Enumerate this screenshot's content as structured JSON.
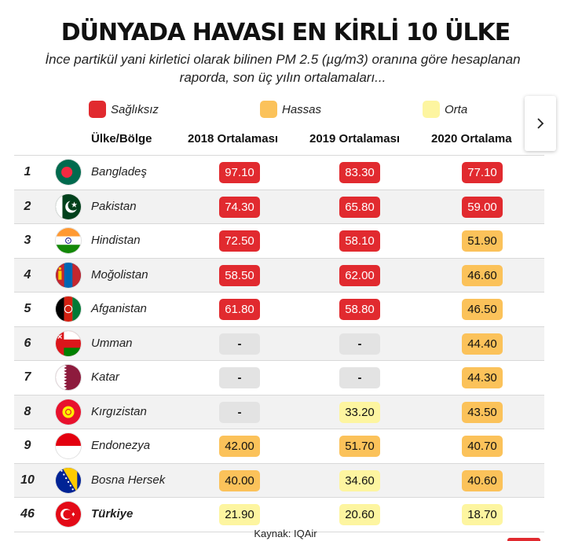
{
  "header": {
    "title": "DÜNYADA HAVASI EN KİRLİ 10 ÜLKE",
    "subtitle": "İnce partikül yani kirletici olarak bilinen PM 2.5 (µg/m3) oranına göre hesaplanan raporda, son üç yılın ortalamaları..."
  },
  "legend": [
    {
      "label": "Sağlıksız",
      "color": "#e12a2f"
    },
    {
      "label": "Hassas",
      "color": "#fbc25a"
    },
    {
      "label": "Orta",
      "color": "#fdf5a0"
    }
  ],
  "columns": {
    "country": "Ülke/Bölge",
    "y2018": "2018 Ortalaması",
    "y2019": "2019 Ortalaması",
    "y2020": "2020 Ortalama"
  },
  "colors": {
    "sagliksiz": "#e12a2f",
    "hassas": "#fbc25a",
    "orta": "#fdf5a0",
    "no_data": "#e3e3e3"
  },
  "chart_data": {
    "type": "table",
    "columns": [
      "Ülke/Bölge",
      "2018 Ortalaması",
      "2019 Ortalaması",
      "2020 Ortalama"
    ],
    "rows": [
      {
        "rank": "1",
        "country": "Bangladeş",
        "flag": "bangladesh-flag-icon",
        "values": [
          "97.10",
          "83.30",
          "77.10"
        ],
        "levels": [
          "sagliksiz",
          "sagliksiz",
          "sagliksiz"
        ]
      },
      {
        "rank": "2",
        "country": "Pakistan",
        "flag": "pakistan-flag-icon",
        "values": [
          "74.30",
          "65.80",
          "59.00"
        ],
        "levels": [
          "sagliksiz",
          "sagliksiz",
          "sagliksiz"
        ]
      },
      {
        "rank": "3",
        "country": "Hindistan",
        "flag": "india-flag-icon",
        "values": [
          "72.50",
          "58.10",
          "51.90"
        ],
        "levels": [
          "sagliksiz",
          "sagliksiz",
          "hassas"
        ]
      },
      {
        "rank": "4",
        "country": "Moğolistan",
        "flag": "mongolia-flag-icon",
        "values": [
          "58.50",
          "62.00",
          "46.60"
        ],
        "levels": [
          "sagliksiz",
          "sagliksiz",
          "hassas"
        ]
      },
      {
        "rank": "5",
        "country": "Afganistan",
        "flag": "afghanistan-flag-icon",
        "values": [
          "61.80",
          "58.80",
          "46.50"
        ],
        "levels": [
          "sagliksiz",
          "sagliksiz",
          "hassas"
        ]
      },
      {
        "rank": "6",
        "country": "Umman",
        "flag": "oman-flag-icon",
        "values": [
          "-",
          "-",
          "44.40"
        ],
        "levels": [
          "no_data",
          "no_data",
          "hassas"
        ]
      },
      {
        "rank": "7",
        "country": "Katar",
        "flag": "qatar-flag-icon",
        "values": [
          "-",
          "-",
          "44.30"
        ],
        "levels": [
          "no_data",
          "no_data",
          "hassas"
        ]
      },
      {
        "rank": "8",
        "country": "Kırgızistan",
        "flag": "kyrgyzstan-flag-icon",
        "values": [
          "-",
          "33.20",
          "43.50"
        ],
        "levels": [
          "no_data",
          "orta",
          "hassas"
        ]
      },
      {
        "rank": "9",
        "country": "Endonezya",
        "flag": "indonesia-flag-icon",
        "values": [
          "42.00",
          "51.70",
          "40.70"
        ],
        "levels": [
          "hassas",
          "hassas",
          "hassas"
        ]
      },
      {
        "rank": "10",
        "country": "Bosna Hersek",
        "flag": "bosnia-flag-icon",
        "values": [
          "40.00",
          "34.60",
          "40.60"
        ],
        "levels": [
          "hassas",
          "orta",
          "hassas"
        ]
      },
      {
        "rank": "46",
        "country": "Türkiye",
        "flag": "turkey-flag-icon",
        "values": [
          "21.90",
          "20.60",
          "18.70"
        ],
        "levels": [
          "orta",
          "orta",
          "orta"
        ]
      }
    ]
  },
  "footer": {
    "source": "Kaynak: IQAir"
  },
  "nav": {
    "next_icon": "chevron-right-icon"
  }
}
